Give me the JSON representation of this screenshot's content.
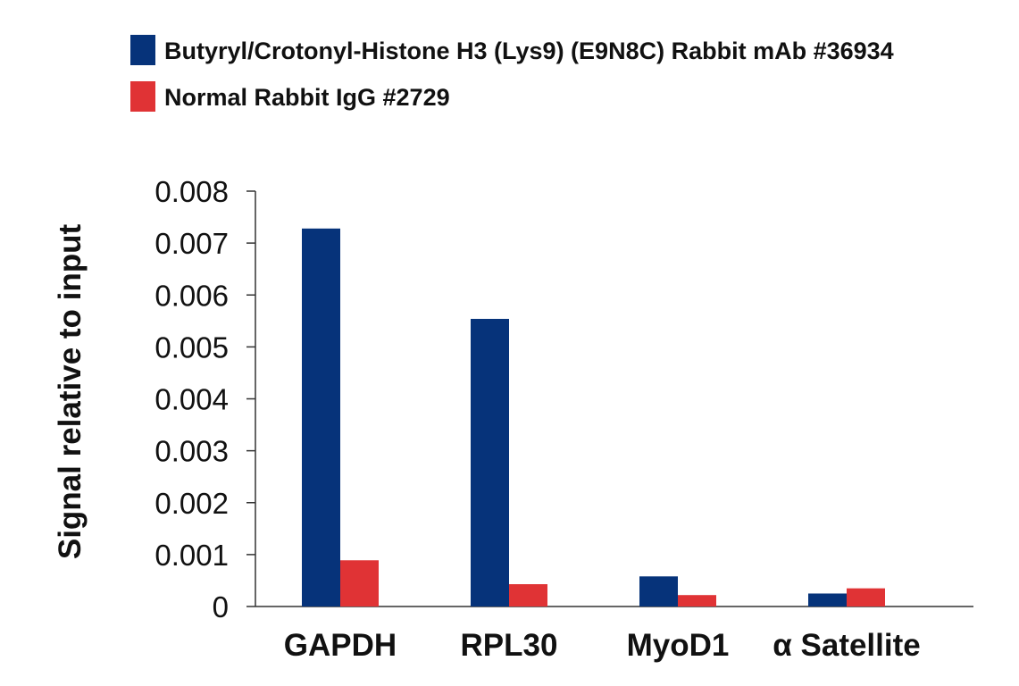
{
  "chart_data": {
    "type": "bar",
    "title": "",
    "xlabel": "",
    "ylabel": "Signal relative to input",
    "categories": [
      "GAPDH",
      "RPL30",
      "MyoD1",
      "α Satellite"
    ],
    "series": [
      {
        "name": "Butyryl/Crotonyl-Histone H3 (Lys9) (E9N8C) Rabbit mAb #36934",
        "color": "#06337a",
        "values": [
          0.00728,
          0.00554,
          0.00058,
          0.00025
        ]
      },
      {
        "name": "Normal Rabbit IgG #2729",
        "color": "#e03335",
        "values": [
          0.00089,
          0.00043,
          0.00022,
          0.00035
        ]
      }
    ],
    "ylim": [
      0,
      0.008
    ],
    "yticks": [
      "0",
      "0.001",
      "0.002",
      "0.003",
      "0.004",
      "0.005",
      "0.006",
      "0.007",
      "0.008"
    ],
    "legend_position": "top-left",
    "grid": false
  }
}
